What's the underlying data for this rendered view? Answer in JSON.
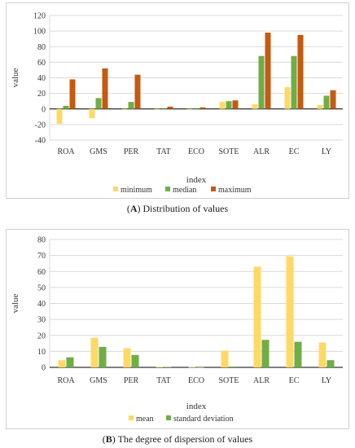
{
  "colors": {
    "minimum": "#FFD966",
    "median": "#70AD47",
    "maximum": "#C55A11",
    "mean": "#FFD966",
    "standard_deviation": "#70AD47",
    "grid": "#d9d9d9",
    "axis": "#000000"
  },
  "captions": {
    "a": {
      "tag": "A",
      "text": " Distribution of values"
    },
    "b": {
      "tag": "B",
      "text": " The degree of dispersion of values"
    }
  },
  "chart_data": [
    {
      "type": "bar",
      "title": "",
      "xlabel": "index",
      "ylabel": "value",
      "ylim": [
        -40,
        120
      ],
      "yticks": [
        -40,
        -20,
        0,
        20,
        40,
        60,
        80,
        100,
        120
      ],
      "grid": true,
      "legend": "bottom",
      "categories": [
        "ROA",
        "GMS",
        "PER",
        "TAT",
        "ECO",
        "SOTE",
        "ALR",
        "EC",
        "LY"
      ],
      "series": [
        {
          "name": "minimum",
          "values": [
            -19,
            -12,
            0,
            0,
            0,
            9,
            6,
            28,
            5
          ]
        },
        {
          "name": "median",
          "values": [
            4,
            14,
            9,
            0,
            0,
            10,
            68,
            68,
            17
          ]
        },
        {
          "name": "maximum",
          "values": [
            38,
            52,
            44,
            3,
            2,
            11,
            98,
            95,
            24
          ]
        }
      ]
    },
    {
      "type": "bar",
      "title": "",
      "xlabel": "index",
      "ylabel": "value",
      "ylim": [
        0,
        80
      ],
      "yticks": [
        0,
        10,
        20,
        30,
        40,
        50,
        60,
        70,
        80
      ],
      "grid": true,
      "legend": "bottom",
      "categories": [
        "ROA",
        "GMS",
        "PER",
        "TAT",
        "ECO",
        "SOTE",
        "ALR",
        "EC",
        "LY"
      ],
      "series": [
        {
          "name": "mean",
          "values": [
            4.5,
            18.5,
            12,
            0.3,
            0.2,
            10.5,
            63,
            69.5,
            15.5
          ]
        },
        {
          "name": "standard deviation",
          "values": [
            6.3,
            12.8,
            7.8,
            0.3,
            0.1,
            0.5,
            17.2,
            16,
            4.5
          ]
        }
      ]
    }
  ]
}
